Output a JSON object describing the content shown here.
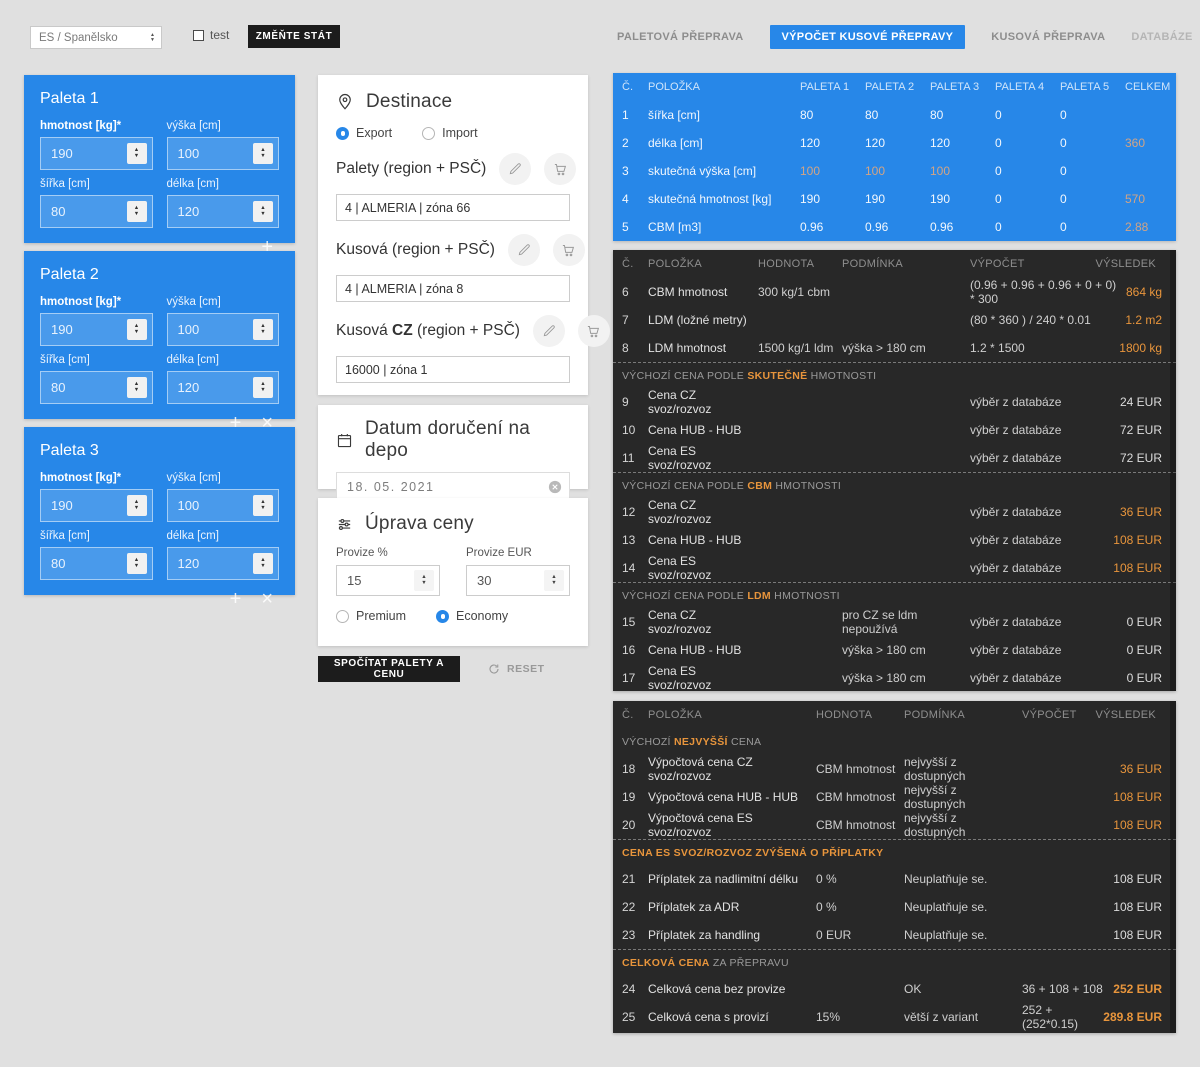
{
  "colors": {
    "accent_blue": "#2787e8",
    "dark_button": "#1c1c1c",
    "table_dark_bg": "#282828",
    "orange": "#e8953c",
    "blue_table_accent": "#d2a485"
  },
  "header": {
    "country_select": {
      "value": "ES / Španělsko"
    },
    "test_checkbox": {
      "label": "test",
      "checked": false
    },
    "change_state_button": "ZMĚŇTE STÁT",
    "tabs": [
      {
        "label": "PALETOVÁ PŘEPRAVA",
        "active": false
      },
      {
        "label": "VÝPOČET KUSOVÉ PŘEPRAVY",
        "active": true
      },
      {
        "label": "KUSOVÁ PŘEPRAVA",
        "active": false
      },
      {
        "label": "DATABÁZE",
        "active": false
      }
    ]
  },
  "palettes": [
    {
      "title": "Paleta 1",
      "hmotnost": {
        "label": "hmotnost [kg]*",
        "value": "190"
      },
      "vyska": {
        "label": "výška [cm]",
        "value": "100"
      },
      "sirka": {
        "label": "šířka [cm]",
        "value": "80"
      },
      "delka": {
        "label": "délka [cm]",
        "value": "120"
      },
      "can_remove": false
    },
    {
      "title": "Paleta 2",
      "hmotnost": {
        "label": "hmotnost [kg]*",
        "value": "190"
      },
      "vyska": {
        "label": "výška [cm]",
        "value": "100"
      },
      "sirka": {
        "label": "šířka [cm]",
        "value": "80"
      },
      "delka": {
        "label": "délka [cm]",
        "value": "120"
      },
      "can_remove": true
    },
    {
      "title": "Paleta 3",
      "hmotnost": {
        "label": "hmotnost [kg]*",
        "value": "190"
      },
      "vyska": {
        "label": "výška [cm]",
        "value": "100"
      },
      "sirka": {
        "label": "šířka [cm]",
        "value": "80"
      },
      "delka": {
        "label": "délka [cm]",
        "value": "120"
      },
      "can_remove": true
    }
  ],
  "destinace": {
    "title": "Destinace",
    "mode_options": [
      "Export",
      "Import"
    ],
    "mode_selected": "Export",
    "groups": [
      {
        "label_pre": "Palety (region + PSČ)",
        "label_bold": "",
        "label_post": "",
        "value": "4 | ALMERIA | zóna 66"
      },
      {
        "label_pre": "Kusová (region + PSČ)",
        "label_bold": "",
        "label_post": "",
        "value": "4 | ALMERIA | zóna 8"
      },
      {
        "label_pre": "Kusová ",
        "label_bold": "CZ",
        "label_post": " (region + PSČ)",
        "value": "16000 | zóna 1"
      }
    ]
  },
  "datum": {
    "title": "Datum doručení na depo",
    "value": "18. 05. 2021"
  },
  "uprava": {
    "title": "Úprava ceny",
    "provize_pct": {
      "label": "Provize %",
      "value": "15"
    },
    "provize_eur": {
      "label": "Provize EUR",
      "value": "30"
    },
    "tariff_options": [
      "Premium",
      "Economy"
    ],
    "tariff_selected": "Economy"
  },
  "actions": {
    "calculate": "SPOČÍTAT PALETY A CENU",
    "reset": "RESET"
  },
  "blue_table": {
    "headers": [
      "Č.",
      "POLOŽKA",
      "PALETA 1",
      "PALETA 2",
      "PALETA 3",
      "PALETA 4",
      "PALETA 5",
      "CELKEM"
    ],
    "rows": [
      {
        "n": "1",
        "polozka": "šířka [cm]",
        "cells": [
          {
            "v": "80"
          },
          {
            "v": "80"
          },
          {
            "v": "80"
          },
          {
            "v": "0"
          },
          {
            "v": "0"
          }
        ],
        "celkem": {
          "v": "",
          "c": "tan"
        }
      },
      {
        "n": "2",
        "polozka": "délka [cm]",
        "cells": [
          {
            "v": "120"
          },
          {
            "v": "120"
          },
          {
            "v": "120"
          },
          {
            "v": "0"
          },
          {
            "v": "0"
          }
        ],
        "celkem": {
          "v": "360",
          "c": "tan"
        }
      },
      {
        "n": "3",
        "polozka": "skutečná výška [cm]",
        "cells": [
          {
            "v": "100",
            "c": "tan"
          },
          {
            "v": "100",
            "c": "tan"
          },
          {
            "v": "100",
            "c": "tan"
          },
          {
            "v": "0"
          },
          {
            "v": "0"
          }
        ],
        "celkem": {
          "v": "",
          "c": "tan"
        }
      },
      {
        "n": "4",
        "polozka": "skutečná hmotnost [kg]",
        "cells": [
          {
            "v": "190"
          },
          {
            "v": "190"
          },
          {
            "v": "190"
          },
          {
            "v": "0"
          },
          {
            "v": "0"
          }
        ],
        "celkem": {
          "v": "570",
          "c": "tan"
        }
      },
      {
        "n": "5",
        "polozka": "CBM [m3]",
        "cells": [
          {
            "v": "0.96"
          },
          {
            "v": "0.96"
          },
          {
            "v": "0.96"
          },
          {
            "v": "0"
          },
          {
            "v": "0"
          }
        ],
        "celkem": {
          "v": "2.88",
          "c": "tan"
        }
      }
    ]
  },
  "dark_table_1": {
    "headers": [
      "Č.",
      "POLOŽKA",
      "HODNOTA",
      "PODMÍNKA",
      "VÝPOČET",
      "VÝSLEDEK"
    ],
    "rows": [
      {
        "t": "row",
        "n": "6",
        "polozka": "CBM hmotnost",
        "hodnota": "300 kg/1 cbm",
        "podminka": "",
        "vypocet": "(0.96 + 0.96 + 0.96 + 0 + 0) * 300",
        "vysledek": "864 kg",
        "vc": "orange"
      },
      {
        "t": "row",
        "n": "7",
        "polozka": "LDM (ložné metry)",
        "hodnota": "",
        "podminka": "",
        "vypocet": "(80 * 360 ) / 240 * 0.01",
        "vysledek": "1.2 m2",
        "vc": "orange"
      },
      {
        "t": "row",
        "n": "8",
        "polozka": "LDM hmotnost",
        "hodnota": "1500 kg/1 ldm",
        "podminka": "výška > 180 cm",
        "vypocet": "1.2 * 1500",
        "vysledek": "1800 kg",
        "vc": "orange"
      },
      {
        "t": "section",
        "dashed": true,
        "parts": [
          {
            "t": "VÝCHOZÍ CENA PODLE ",
            "c": "gray"
          },
          {
            "t": "SKUTEČNÉ",
            "c": "orange"
          },
          {
            "t": " HMOTNOSTI",
            "c": "gray"
          }
        ]
      },
      {
        "t": "row",
        "n": "9",
        "polozka": "Cena CZ svoz/rozvoz",
        "hodnota": "",
        "podminka": "",
        "vypocet": "výběr z databáze",
        "vysledek": "24 EUR",
        "vc": ""
      },
      {
        "t": "row",
        "n": "10",
        "polozka": "Cena HUB - HUB",
        "hodnota": "",
        "podminka": "",
        "vypocet": "výběr z databáze",
        "vysledek": "72 EUR",
        "vc": ""
      },
      {
        "t": "row",
        "n": "11",
        "polozka": "Cena ES svoz/rozvoz",
        "hodnota": "",
        "podminka": "",
        "vypocet": "výběr z databáze",
        "vysledek": "72 EUR",
        "vc": ""
      },
      {
        "t": "section",
        "dashed": true,
        "parts": [
          {
            "t": "VÝCHOZÍ CENA PODLE ",
            "c": "gray"
          },
          {
            "t": "CBM",
            "c": "orange"
          },
          {
            "t": " HMOTNOSTI",
            "c": "gray"
          }
        ]
      },
      {
        "t": "row",
        "n": "12",
        "polozka": "Cena CZ svoz/rozvoz",
        "hodnota": "",
        "podminka": "",
        "vypocet": "výběr z databáze",
        "vysledek": "36 EUR",
        "vc": "orange"
      },
      {
        "t": "row",
        "n": "13",
        "polozka": "Cena HUB - HUB",
        "hodnota": "",
        "podminka": "",
        "vypocet": "výběr z databáze",
        "vysledek": "108 EUR",
        "vc": "orange"
      },
      {
        "t": "row",
        "n": "14",
        "polozka": "Cena ES svoz/rozvoz",
        "hodnota": "",
        "podminka": "",
        "vypocet": "výběr z databáze",
        "vysledek": "108 EUR",
        "vc": "orange"
      },
      {
        "t": "section",
        "dashed": true,
        "parts": [
          {
            "t": "VÝCHOZÍ CENA PODLE ",
            "c": "gray"
          },
          {
            "t": "LDM",
            "c": "orange"
          },
          {
            "t": " HMOTNOSTI",
            "c": "gray"
          }
        ]
      },
      {
        "t": "row",
        "n": "15",
        "polozka": "Cena CZ svoz/rozvoz",
        "hodnota": "",
        "podminka": "pro CZ se ldm nepoužívá",
        "vypocet": "výběr z databáze",
        "vysledek": "0 EUR",
        "vc": ""
      },
      {
        "t": "row",
        "n": "16",
        "polozka": "Cena HUB - HUB",
        "hodnota": "",
        "podminka": "výška > 180 cm",
        "vypocet": "výběr z databáze",
        "vysledek": "0 EUR",
        "vc": ""
      },
      {
        "t": "row",
        "n": "17",
        "polozka": "Cena ES svoz/rozvoz",
        "hodnota": "",
        "podminka": "výška > 180 cm",
        "vypocet": "výběr z databáze",
        "vysledek": "0 EUR",
        "vc": ""
      }
    ]
  },
  "dark_table_2": {
    "headers": [
      "Č.",
      "POLOŽKA",
      "HODNOTA",
      "PODMÍNKA",
      "VÝPOČET",
      "VÝSLEDEK"
    ],
    "rows": [
      {
        "t": "section",
        "dashed": false,
        "parts": [
          {
            "t": "VÝCHOZÍ ",
            "c": "gray"
          },
          {
            "t": "NEJVYŠŠÍ",
            "c": "orange"
          },
          {
            "t": " CENA",
            "c": "gray"
          }
        ]
      },
      {
        "t": "row",
        "n": "18",
        "polozka": "Výpočtová cena CZ svoz/rozvoz",
        "hodnota": "CBM hmotnost",
        "podminka": "nejvyšší z dostupných",
        "vypocet": "",
        "vysledek": "36 EUR",
        "vc": "orange"
      },
      {
        "t": "row",
        "n": "19",
        "polozka": "Výpočtová cena HUB - HUB",
        "hodnota": "CBM hmotnost",
        "podminka": "nejvyšší z dostupných",
        "vypocet": "",
        "vysledek": "108 EUR",
        "vc": "orange"
      },
      {
        "t": "row",
        "n": "20",
        "polozka": "Výpočtová cena ES svoz/rozvoz",
        "hodnota": "CBM hmotnost",
        "podminka": "nejvyšší z dostupných",
        "vypocet": "",
        "vysledek": "108 EUR",
        "vc": "orange"
      },
      {
        "t": "section",
        "dashed": true,
        "parts": [
          {
            "t": "CENA ES SVOZ/ROZVOZ ZVÝŠENÁ O PŘÍPLATKY",
            "c": "orange"
          }
        ]
      },
      {
        "t": "row",
        "n": "21",
        "polozka": "Příplatek za nadlimitní délku",
        "hodnota": "0 %",
        "podminka": "Neuplatňuje se.",
        "vypocet": "",
        "vysledek": "108 EUR",
        "vc": ""
      },
      {
        "t": "row",
        "n": "22",
        "polozka": "Příplatek za ADR",
        "hodnota": "0 %",
        "podminka": "Neuplatňuje se.",
        "vypocet": "",
        "vysledek": "108 EUR",
        "vc": ""
      },
      {
        "t": "row",
        "n": "23",
        "polozka": "Příplatek za handling",
        "hodnota": "0 EUR",
        "podminka": "Neuplatňuje se.",
        "vypocet": "",
        "vysledek": "108 EUR",
        "vc": ""
      },
      {
        "t": "section",
        "dashed": true,
        "parts": [
          {
            "t": "CELKOVÁ CENA",
            "c": "orange"
          },
          {
            "t": " ZA PŘEPRAVU",
            "c": "gray"
          }
        ]
      },
      {
        "t": "row",
        "n": "24",
        "polozka": "Celková cena bez provize",
        "hodnota": "",
        "podminka": "OK",
        "vypocet": "36 + 108 + 108",
        "vysledek": "252 EUR",
        "vc": "orange-bold"
      },
      {
        "t": "row",
        "n": "25",
        "polozka": "Celková cena s provizí",
        "hodnota": "15%",
        "podminka": "větší z variant",
        "vypocet": "252 + (252*0.15)",
        "vysledek": "289.8 EUR",
        "vc": "orange-bold"
      }
    ]
  }
}
